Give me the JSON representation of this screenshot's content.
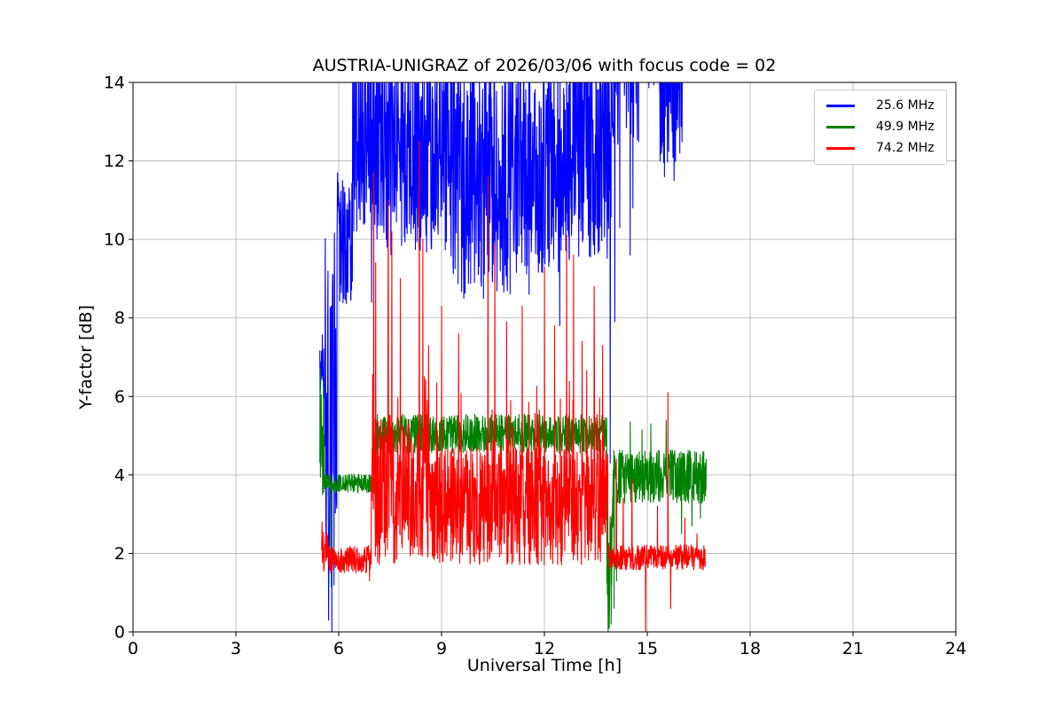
{
  "chart_data": {
    "type": "line",
    "title": "AUSTRIA-UNIGRAZ of 2026/03/06 with focus code = 02",
    "xlabel": "Universal Time [h]",
    "ylabel": "Y-factor [dB]",
    "xlim": [
      0,
      24
    ],
    "ylim": [
      0,
      14
    ],
    "xticks": [
      0,
      3,
      6,
      9,
      12,
      15,
      18,
      21,
      24
    ],
    "yticks": [
      0,
      2,
      4,
      6,
      8,
      10,
      12,
      14
    ],
    "grid": true,
    "grid_color": "#b0b0b0",
    "axis_color": "#000000",
    "background_color": "#ffffff",
    "legend_position": "upper right",
    "x_data_range": [
      5.45,
      16.72
    ],
    "series": [
      {
        "name": "25.6 MHz",
        "color": "#0000ff",
        "seed": 101,
        "segments": [
          {
            "t0": 5.45,
            "t1": 5.6,
            "base": 6.8,
            "amp": 0.9
          },
          {
            "t0": 5.6,
            "t1": 5.95,
            "base": 6.0,
            "amp": 4.5
          },
          {
            "t0": 5.95,
            "t1": 6.4,
            "base": 10.0,
            "amp": 1.7
          },
          {
            "t0": 6.4,
            "t1": 7.1,
            "base": 12.8,
            "amp": 2.6
          },
          {
            "t0": 7.1,
            "t1": 9.2,
            "base": 12.3,
            "amp": 2.7
          },
          {
            "t0": 9.2,
            "t1": 11.2,
            "base": 11.6,
            "amp": 3.0
          },
          {
            "t0": 11.2,
            "t1": 12.6,
            "base": 11.9,
            "amp": 2.8
          },
          {
            "t0": 12.6,
            "t1": 13.95,
            "base": 12.4,
            "amp": 3.0
          },
          {
            "t0": 13.95,
            "t1": 14.75,
            "base": 16.0,
            "amp": 3.8
          },
          {
            "t0": 14.75,
            "t1": 15.35,
            "base": 17.0,
            "amp": 3.2
          },
          {
            "t0": 15.35,
            "t1": 16.05,
            "base": 14.6,
            "amp": 2.7
          }
        ],
        "spikes": [
          [
            5.7,
            0.3
          ],
          [
            5.8,
            0.0
          ],
          [
            5.86,
            1.2
          ],
          [
            6.96,
            8.4
          ],
          [
            9.65,
            8.5
          ],
          [
            10.22,
            8.5
          ],
          [
            11.55,
            8.6
          ],
          [
            12.45,
            7.8
          ],
          [
            13.92,
            4.3
          ],
          [
            14.05,
            7.9
          ],
          [
            14.2,
            10.3
          ],
          [
            14.5,
            9.6
          ],
          [
            14.58,
            10.8
          ],
          [
            15.5,
            11.6
          ],
          [
            15.78,
            11.5
          ],
          [
            15.95,
            12.2
          ]
        ]
      },
      {
        "name": "49.9 MHz",
        "color": "#008000",
        "seed": 202,
        "segments": [
          {
            "t0": 5.45,
            "t1": 5.58,
            "base": 4.8,
            "amp": 1.7
          },
          {
            "t0": 5.58,
            "t1": 7.05,
            "base": 3.78,
            "amp": 0.24
          },
          {
            "t0": 7.05,
            "t1": 13.82,
            "base": 5.05,
            "amp": 0.5
          },
          {
            "t0": 13.82,
            "t1": 14.0,
            "base": 1.8,
            "amp": 1.7
          },
          {
            "t0": 14.0,
            "t1": 16.72,
            "base": 3.95,
            "amp": 0.68
          }
        ],
        "spikes": [
          [
            5.46,
            6.7
          ],
          [
            5.78,
            1.15
          ],
          [
            13.86,
            0.0
          ],
          [
            13.95,
            0.2
          ],
          [
            14.03,
            0.6
          ],
          [
            14.1,
            1.3
          ],
          [
            14.5,
            5.35
          ],
          [
            14.85,
            5.15
          ],
          [
            15.1,
            5.3
          ],
          [
            15.55,
            5.4
          ],
          [
            16.0,
            2.5
          ],
          [
            16.3,
            2.7
          ],
          [
            16.55,
            2.9
          ]
        ]
      },
      {
        "name": "74.2 MHz",
        "color": "#ff0000",
        "seed": 303,
        "segments": [
          {
            "t0": 5.5,
            "t1": 5.7,
            "base": 2.05,
            "amp": 0.5
          },
          {
            "t0": 5.7,
            "t1": 6.95,
            "base": 1.85,
            "amp": 0.35
          },
          {
            "t0": 6.95,
            "t1": 8.65,
            "base": 3.6,
            "amp": 1.9,
            "burst": 3.0,
            "burst_p": 0.1
          },
          {
            "t0": 8.65,
            "t1": 13.85,
            "base": 3.2,
            "amp": 1.5,
            "burst": 2.6,
            "burst_p": 0.12
          },
          {
            "t0": 13.85,
            "t1": 16.7,
            "base": 1.9,
            "amp": 0.32
          }
        ],
        "spikes": [
          [
            5.52,
            2.8
          ],
          [
            6.9,
            1.3
          ],
          [
            7.02,
            11.7
          ],
          [
            7.08,
            9.4
          ],
          [
            7.45,
            11.0
          ],
          [
            7.55,
            10.2
          ],
          [
            7.8,
            9.0
          ],
          [
            8.35,
            12.5
          ],
          [
            8.45,
            10.0
          ],
          [
            9.0,
            8.3
          ],
          [
            9.5,
            7.6
          ],
          [
            10.35,
            11.6
          ],
          [
            10.55,
            9.9
          ],
          [
            10.9,
            7.9
          ],
          [
            11.35,
            8.3
          ],
          [
            12.0,
            9.3
          ],
          [
            12.3,
            7.8
          ],
          [
            12.65,
            10.1
          ],
          [
            12.85,
            9.6
          ],
          [
            13.1,
            7.4
          ],
          [
            13.45,
            8.8
          ],
          [
            13.7,
            7.3
          ],
          [
            14.1,
            4.4
          ],
          [
            14.3,
            3.4
          ],
          [
            14.55,
            3.9
          ],
          [
            14.95,
            0.0
          ],
          [
            15.3,
            3.2
          ],
          [
            15.6,
            6.1
          ],
          [
            15.68,
            0.6
          ],
          [
            16.1,
            2.9
          ],
          [
            16.45,
            2.5
          ]
        ]
      }
    ]
  }
}
